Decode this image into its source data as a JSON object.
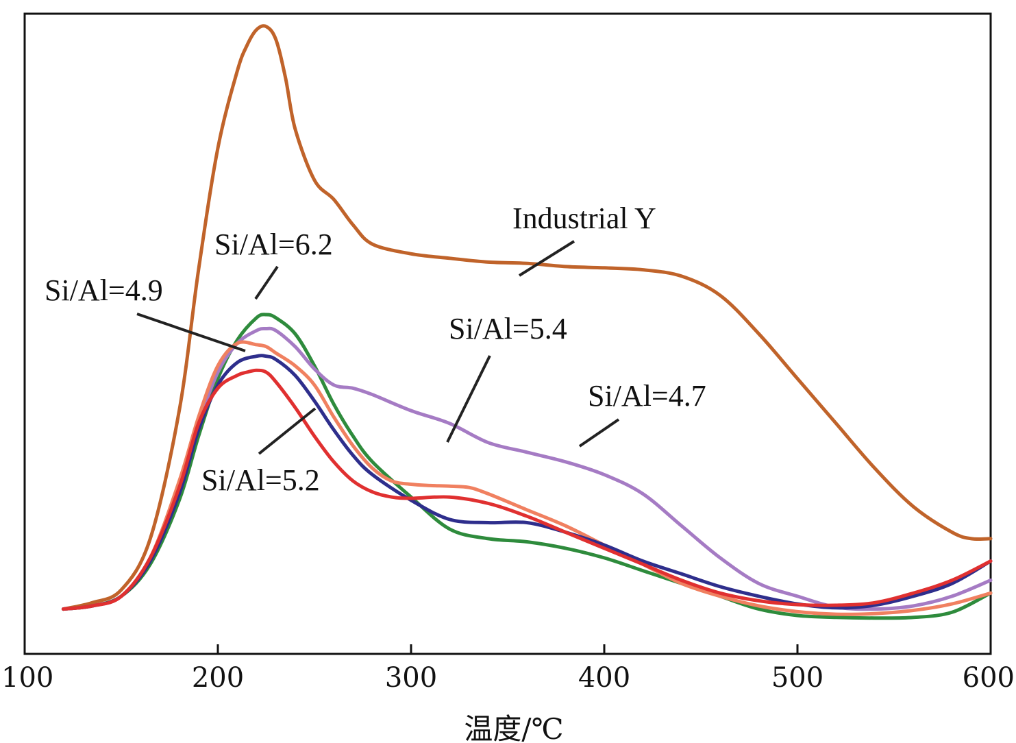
{
  "chart_data": {
    "type": "line",
    "title": "",
    "xlabel": "温度/℃",
    "ylabel": "",
    "xlim": [
      100,
      600
    ],
    "ylim": [
      0,
      100
    ],
    "xticks": [
      100,
      200,
      300,
      400,
      500,
      600
    ],
    "xtick_labels": [
      "100",
      "200",
      "300",
      "400",
      "500",
      "600"
    ],
    "grid": false,
    "series": [
      {
        "name": "Industrial Y",
        "color": "#c0632a",
        "x": [
          120,
          135,
          150,
          165,
          180,
          190,
          200,
          210,
          215,
          220,
          225,
          230,
          235,
          240,
          250,
          260,
          270,
          280,
          300,
          320,
          340,
          360,
          380,
          400,
          420,
          440,
          460,
          480,
          500,
          520,
          540,
          560,
          580,
          590,
          600
        ],
        "y": [
          7,
          8,
          10,
          18,
          38,
          60,
          79,
          91,
          95,
          97.5,
          98,
          96,
          90,
          82,
          74,
          71,
          67,
          64,
          62.5,
          61.8,
          61.2,
          61,
          60.5,
          60.3,
          60,
          59,
          56,
          50,
          43,
          36,
          29,
          23,
          19,
          18,
          18
        ]
      },
      {
        "name": "Si/Al=6.2",
        "color": "#2e8b3c",
        "x": [
          120,
          135,
          150,
          165,
          180,
          190,
          200,
          210,
          220,
          225,
          230,
          240,
          250,
          260,
          270,
          280,
          300,
          320,
          340,
          360,
          380,
          400,
          420,
          440,
          460,
          480,
          500,
          520,
          540,
          560,
          580,
          600
        ],
        "y": [
          7,
          7.5,
          9,
          14,
          24,
          34,
          43,
          49,
          52.5,
          53,
          52.5,
          50,
          45,
          39,
          34,
          30,
          24.5,
          19.5,
          18,
          17.5,
          16.5,
          15,
          13,
          11,
          9,
          7,
          6,
          5.7,
          5.6,
          5.7,
          6.5,
          9.5
        ]
      },
      {
        "name": "Si/Al=4.7",
        "color": "#a57bc4",
        "x": [
          120,
          135,
          150,
          165,
          180,
          190,
          200,
          210,
          220,
          225,
          230,
          240,
          250,
          260,
          270,
          280,
          300,
          320,
          340,
          360,
          380,
          400,
          420,
          440,
          460,
          480,
          500,
          520,
          540,
          560,
          580,
          600
        ],
        "y": [
          7,
          7.5,
          9,
          15,
          26,
          36,
          44,
          48.5,
          50.5,
          50.8,
          50.5,
          48,
          44.5,
          42,
          41.5,
          40.5,
          38,
          36,
          33,
          31.5,
          30,
          28,
          25,
          20,
          15,
          11,
          9,
          7.3,
          7,
          7.5,
          9,
          11.5
        ]
      },
      {
        "name": "Si/Al=5.4",
        "color": "#f08060",
        "x": [
          120,
          135,
          150,
          165,
          180,
          190,
          200,
          210,
          220,
          225,
          230,
          240,
          250,
          260,
          270,
          280,
          290,
          300,
          310,
          320,
          330,
          340,
          360,
          380,
          400,
          420,
          440,
          460,
          480,
          500,
          520,
          540,
          560,
          580,
          600
        ],
        "y": [
          7,
          7.5,
          9,
          15,
          27,
          37,
          45,
          48.5,
          48.3,
          48,
          47,
          45,
          42,
          37,
          32.5,
          29,
          27,
          26.5,
          26.3,
          26.2,
          26,
          25,
          22.5,
          20,
          17,
          14,
          11,
          9,
          7.5,
          6.6,
          6.2,
          6.3,
          6.8,
          7.8,
          9.5
        ]
      },
      {
        "name": "Si/Al=4.9",
        "color": "#2e2e8c",
        "x": [
          120,
          135,
          150,
          165,
          180,
          190,
          200,
          210,
          220,
          225,
          230,
          240,
          250,
          260,
          270,
          280,
          300,
          320,
          340,
          360,
          380,
          400,
          420,
          440,
          460,
          480,
          500,
          520,
          540,
          560,
          580,
          600
        ],
        "y": [
          7,
          7.5,
          9,
          14.5,
          25,
          35,
          42,
          45.5,
          46.5,
          46.5,
          46,
          43.5,
          39.5,
          35,
          31,
          28,
          24,
          21,
          20.5,
          20.5,
          19,
          17,
          14.5,
          12.5,
          10.5,
          9,
          7.8,
          7.2,
          7.6,
          9,
          11,
          14.5
        ]
      },
      {
        "name": "Si/Al=5.2",
        "color": "#e03030",
        "x": [
          120,
          135,
          150,
          165,
          180,
          190,
          200,
          210,
          215,
          220,
          225,
          230,
          240,
          250,
          260,
          270,
          280,
          290,
          300,
          320,
          340,
          360,
          380,
          400,
          420,
          440,
          460,
          480,
          500,
          520,
          540,
          560,
          580,
          600
        ],
        "y": [
          7,
          7.5,
          9,
          15,
          26,
          36,
          41.5,
          43.5,
          44,
          44.3,
          44,
          42.5,
          38.5,
          34,
          30,
          27,
          25.3,
          24.5,
          24.3,
          24.5,
          23.5,
          21.5,
          19,
          16.5,
          14,
          11.5,
          9.5,
          8.3,
          7.7,
          7.6,
          8,
          9.5,
          11.5,
          14.5
        ]
      }
    ],
    "annotations": [
      {
        "text": "Industrial Y",
        "series": "Industrial Y"
      },
      {
        "text": "Si/Al=6.2",
        "series": "Si/Al=6.2"
      },
      {
        "text": "Si/Al=4.9",
        "series": "Si/Al=4.9"
      },
      {
        "text": "Si/Al=5.4",
        "series": "Si/Al=5.4"
      },
      {
        "text": "Si/Al=4.7",
        "series": "Si/Al=4.7"
      },
      {
        "text": "Si/Al=5.2",
        "series": "Si/Al=5.2"
      }
    ]
  }
}
